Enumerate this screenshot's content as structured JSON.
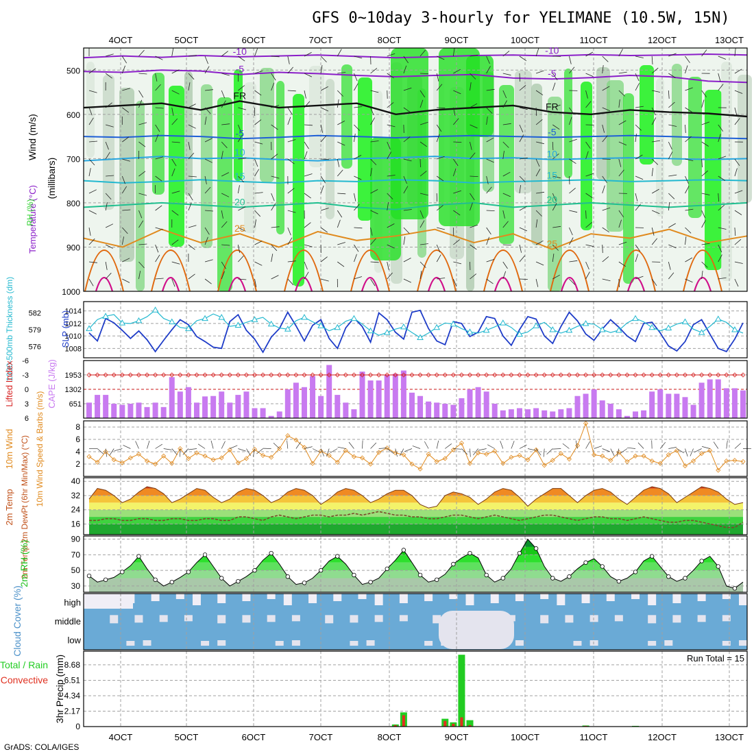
{
  "header": {
    "title": "GFS 0~10day 3-hourly for YELIMANE (10.5W, 15N)",
    "credit": "GrADS: COLA/IGES"
  },
  "colors": {
    "frame": "#000000",
    "grid": "#a0a0a0",
    "temp_contour": "#1e5fd6",
    "temp_cold": "#8a1ec8",
    "temp_warm": "#e08a1e",
    "rh_green": "#2ecf2e",
    "slp": "#1e3cc8",
    "thickness": "#22b8cf",
    "lifted_index": "#d62020",
    "cape": "#c87af0",
    "wind10m": "#e08a1e",
    "rh2m": "#20c020",
    "cloud": "#6aaad6",
    "cloud_gap": "#f0eef6",
    "precip_total": "#22cc22",
    "precip_conv": "#e03020"
  },
  "chart_data": [
    {
      "id": "upper",
      "type": "heatmap",
      "ylabel_parts": [
        "Wind (m/s)",
        "Temperature (°C)",
        "RH (%)"
      ],
      "ylabel_right": "(millibars)",
      "x_tick_labels": [
        "4OCT",
        "5OCT",
        "6OCT",
        "7OCT",
        "8OCT",
        "9OCT",
        "10OCT",
        "11OCT",
        "12OCT",
        "13OCT"
      ],
      "y_ticks": [
        500,
        600,
        700,
        800,
        900,
        1000
      ],
      "y_range": [
        1000,
        450
      ],
      "contours": [
        {
          "label": "-10",
          "p": [
            472,
            468,
            471,
            467,
            470,
            468,
            466,
            469,
            472,
            470,
            467,
            466,
            468,
            465,
            467,
            466,
            464,
            466
          ]
        },
        {
          "label": "-5",
          "p": [
            503,
            505,
            500,
            502,
            510,
            505,
            508,
            512,
            515,
            512,
            510,
            518,
            520,
            517,
            512,
            515,
            525,
            528
          ]
        },
        {
          "label": "FR",
          "p": [
            585,
            580,
            575,
            590,
            570,
            585,
            580,
            575,
            600,
            590,
            585,
            580,
            595,
            600,
            590,
            595,
            598,
            605
          ]
        },
        {
          "label": "-5",
          "p": [
            650,
            652,
            648,
            650,
            655,
            652,
            648,
            650,
            653,
            650,
            648,
            650,
            652,
            650,
            648,
            650,
            653,
            655
          ]
        },
        {
          "label": "10",
          "p": [
            705,
            700,
            695,
            700,
            698,
            702,
            705,
            700,
            698,
            695,
            700,
            698,
            702,
            700,
            698,
            700,
            702,
            700
          ]
        },
        {
          "label": "15",
          "p": [
            750,
            755,
            752,
            748,
            752,
            755,
            750,
            752,
            748,
            750,
            755,
            752,
            750,
            748,
            752,
            750,
            748,
            750
          ]
        },
        {
          "label": "20",
          "p": [
            810,
            805,
            800,
            805,
            810,
            805,
            800,
            810,
            815,
            805,
            800,
            810,
            805,
            800,
            805,
            810,
            805,
            800
          ]
        },
        {
          "label": "25",
          "p": [
            880,
            900,
            860,
            890,
            870,
            900,
            865,
            885,
            875,
            860,
            890,
            870,
            905,
            870,
            880,
            860,
            890,
            875
          ]
        }
      ],
      "rh_levels": [
        40,
        50,
        60,
        70,
        80,
        90
      ]
    },
    {
      "id": "slp_thickness",
      "type": "line",
      "ylabel_left": "1000-500mb Thickness (dm)",
      "ylabel_right": "SLP (mb)",
      "left_ticks": [
        576,
        579,
        582
      ],
      "right_ticks": [
        1008,
        1010,
        1012,
        1014
      ],
      "series": [
        {
          "name": "SLP",
          "axis": "right",
          "values": [
            1010.5,
            1009.2,
            1012.8,
            1012.1,
            1010.9,
            1009.6,
            1010.8,
            1009.4,
            1007.5,
            1009.3,
            1011.0,
            1012.6,
            1011.8,
            1009.9,
            1009.1,
            1008.2,
            1008.0,
            1012.3,
            1013.4,
            1010.9,
            1009.5,
            1007.4,
            1009.8,
            1011.2,
            1013.8,
            1011.6,
            1009.2,
            1011.7,
            1012.6,
            1009.6,
            1008.0,
            1011.3,
            1012.9,
            1011.5,
            1009.0,
            1013.7,
            1012.6,
            1010.6,
            1009.5,
            1013.8,
            1014.1,
            1011.2,
            1009.2,
            1008.6,
            1012.3,
            1012.0,
            1009.9,
            1010.6,
            1013.1,
            1012.8,
            1010.0,
            1008.5,
            1011.0,
            1013.1,
            1012.7,
            1010.0,
            1008.8,
            1011.5,
            1013.8,
            1012.4,
            1010.3,
            1009.3,
            1011.1,
            1012.6,
            1011.4,
            1010.0,
            1009.1,
            1012.0,
            1012.2,
            1010.5,
            1008.4,
            1007.6,
            1009.1,
            1011.8,
            1012.6,
            1010.3,
            1008.0,
            1007.5,
            1009.5,
            1012.1
          ]
        },
        {
          "name": "Thickness",
          "axis": "left",
          "values": [
            579.2,
            580.8,
            581.4,
            581.7,
            580.2,
            580.1,
            580.6,
            581.3,
            582.5,
            581.0,
            580.4,
            579.4,
            579.2,
            580.6,
            581.0,
            581.8,
            581.2,
            579.6,
            579.8,
            580.3,
            580.8,
            581.2,
            580.0,
            579.3,
            579.1,
            580.6,
            581.2,
            580.4,
            579.7,
            578.8,
            579.4,
            580.5,
            581.0,
            580.0,
            578.8,
            578.0,
            578.5,
            579.1,
            579.5,
            578.5,
            577.6,
            578.4,
            579.4,
            580.2,
            580.0,
            579.2,
            578.6,
            578.4,
            578.9,
            579.5,
            580.2,
            579.4,
            578.2,
            578.6,
            579.7,
            580.3,
            579.0,
            578.4,
            578.9,
            579.6,
            580.1,
            580.0,
            579.0,
            578.5,
            578.9,
            580.2,
            581.0,
            580.4,
            579.4,
            578.8,
            579.3,
            580.0,
            580.4,
            579.1,
            578.5,
            579.6,
            580.9,
            580.3,
            579.0,
            578.4
          ]
        }
      ]
    },
    {
      "id": "li_cape",
      "type": "bar",
      "ylabel_left": "Lifted Index",
      "ylabel_right": "CAPE (J/kg)",
      "left_ticks": [
        -6,
        -3,
        0,
        3,
        6
      ],
      "right_ticks": [
        651,
        1302,
        1953
      ],
      "cape_values": [
        700,
        1050,
        1050,
        650,
        600,
        650,
        700,
        500,
        700,
        500,
        1850,
        1200,
        1400,
        700,
        980,
        1000,
        1200,
        700,
        1050,
        1200,
        450,
        450,
        100,
        300,
        1300,
        1600,
        1400,
        1900,
        1000,
        2400,
        1050,
        700,
        400,
        2100,
        1700,
        1700,
        1950,
        2000,
        2150,
        1150,
        1000,
        750,
        700,
        650,
        600,
        900,
        1300,
        1400,
        1200,
        650,
        350,
        400,
        450,
        400,
        450,
        350,
        300,
        400,
        450,
        1000,
        1100,
        1300,
        800,
        650,
        400,
        100,
        300,
        350,
        1200,
        1300,
        1100,
        1100,
        950,
        600,
        1600,
        1750,
        1750,
        1350,
        1350,
        1250
      ]
    },
    {
      "id": "wind10m",
      "type": "line",
      "ylabel_left": "10m Wind Speed & Barbs (m/s)",
      "left_ticks": [
        2,
        4,
        6,
        8
      ],
      "values": [
        3.2,
        2.3,
        4.0,
        2.7,
        2.2,
        3.0,
        3.6,
        2.5,
        2.0,
        3.3,
        2.1,
        4.5,
        2.9,
        3.8,
        3.3,
        2.7,
        3.0,
        4.3,
        2.2,
        2.9,
        4.4,
        3.4,
        3.1,
        4.5,
        6.6,
        5.9,
        4.7,
        2.1,
        4.1,
        3.4,
        2.3,
        4.2,
        3.2,
        3.0,
        2.0,
        3.9,
        4.6,
        3.8,
        3.5,
        2.0,
        1.2,
        3.6,
        2.4,
        2.9,
        4.3,
        5.4,
        2.1,
        3.8,
        3.6,
        4.1,
        2.1,
        3.1,
        3.4,
        2.7,
        4.3,
        1.8,
        2.6,
        3.7,
        2.8,
        5.0,
        8.6,
        3.5,
        3.3,
        2.6,
        3.9,
        2.4,
        3.3,
        3.3,
        2.5,
        2.1,
        3.5,
        4.2,
        1.7,
        2.5,
        3.7,
        4.2,
        1.0,
        2.5,
        2.6,
        2.4
      ]
    },
    {
      "id": "temp2m",
      "type": "area",
      "ylabel_left": "2m Temp 2m DewPt (6hr Min/Max) (°C)",
      "left_ticks": [
        16,
        24,
        32,
        40
      ],
      "temp": [
        30,
        36,
        35,
        32,
        28,
        30,
        34,
        37,
        36,
        33,
        28,
        30,
        33,
        36,
        35,
        31,
        28,
        30,
        34,
        36,
        35,
        32,
        28,
        30,
        34,
        36,
        35,
        32,
        27,
        30,
        34,
        36,
        35,
        32,
        28,
        30,
        33,
        35,
        35,
        32,
        27,
        25,
        26,
        32,
        34,
        33,
        31,
        27,
        30,
        34,
        36,
        35,
        31,
        26,
        30,
        33,
        36,
        36,
        32,
        28,
        32,
        35,
        36,
        34,
        30,
        27,
        31,
        35,
        37,
        36,
        33,
        28,
        31,
        34,
        37,
        36,
        34,
        30,
        27,
        28
      ],
      "dewpt": [
        18,
        18,
        19,
        19,
        18,
        18,
        19,
        19,
        18,
        18,
        19,
        19,
        18,
        18,
        19,
        19,
        18,
        18,
        20,
        20,
        19,
        18,
        20,
        21,
        20,
        19,
        20,
        21,
        21,
        20,
        21,
        21,
        22,
        21,
        22,
        23,
        22,
        21,
        21,
        20,
        20,
        19,
        19,
        20,
        21,
        21,
        20,
        19,
        20,
        21,
        20,
        19,
        18,
        19,
        20,
        21,
        21,
        20,
        19,
        18,
        19,
        20,
        20,
        19,
        19,
        18,
        19,
        20,
        19,
        18,
        17,
        17,
        18,
        18,
        17,
        16,
        15,
        14,
        14,
        17
      ]
    },
    {
      "id": "rh2m",
      "type": "area",
      "ylabel_left": "2m RH (%)",
      "left_ticks": [
        30,
        50,
        70,
        90
      ],
      "values": [
        43,
        35,
        38,
        41,
        48,
        56,
        68,
        52,
        38,
        30,
        35,
        41,
        48,
        60,
        70,
        55,
        40,
        30,
        36,
        42,
        50,
        63,
        72,
        58,
        42,
        32,
        34,
        40,
        50,
        62,
        68,
        58,
        44,
        32,
        35,
        40,
        52,
        63,
        76,
        60,
        44,
        35,
        38,
        45,
        58,
        66,
        72,
        66,
        44,
        35,
        40,
        52,
        72,
        90,
        78,
        55,
        40,
        36,
        42,
        52,
        60,
        65,
        55,
        42,
        36,
        40,
        48,
        62,
        68,
        55,
        42,
        36,
        40,
        50,
        62,
        68,
        55,
        30,
        27,
        35
      ]
    },
    {
      "id": "cloud",
      "type": "heatmap",
      "ylabel_left": "Cloud Cover (%)",
      "row_labels": [
        "high",
        "middle",
        "low"
      ]
    },
    {
      "id": "precip",
      "type": "bar",
      "ylabel_left": "3hr Precip (mm)",
      "left_ticks": [
        0,
        2.17,
        4.34,
        6.51,
        8.68
      ],
      "annotation": "Run Total = 15",
      "legend": [
        "Total / Rain",
        "Convective"
      ],
      "bars": [
        {
          "idx": 37,
          "total": 0.3,
          "conv": 0.2
        },
        {
          "idx": 38,
          "total": 2.0,
          "conv": 1.6
        },
        {
          "idx": 43,
          "total": 1.1,
          "conv": 0.8
        },
        {
          "idx": 44,
          "total": 0.6,
          "conv": 0.4
        },
        {
          "idx": 45,
          "total": 10.1,
          "conv": 1.3
        },
        {
          "idx": 46,
          "total": 0.9,
          "conv": 0.2
        },
        {
          "idx": 60,
          "total": 0.15,
          "conv": 0.1
        },
        {
          "idx": 66,
          "total": 0.1,
          "conv": 0.05
        }
      ]
    }
  ]
}
